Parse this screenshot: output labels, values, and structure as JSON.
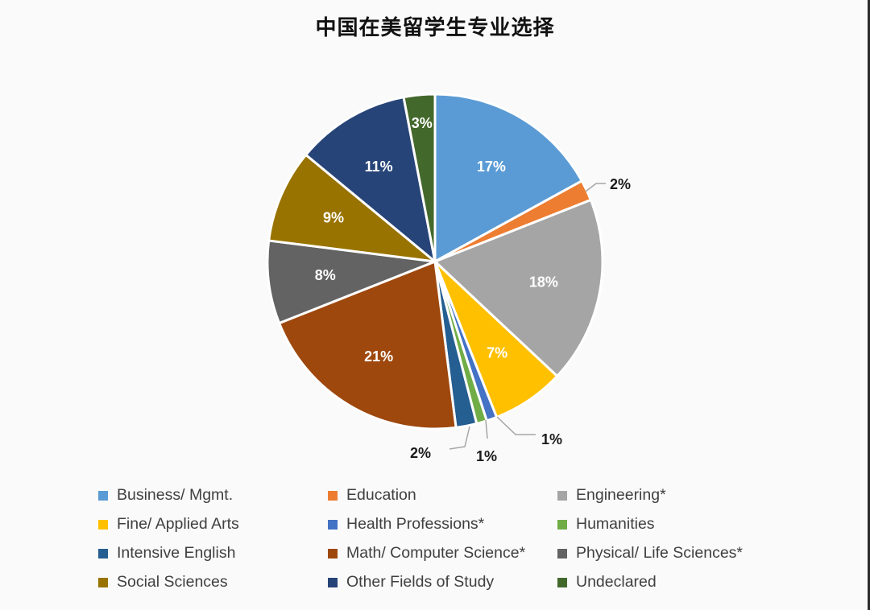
{
  "title": "中国在美留学生专业选择",
  "chart_data": {
    "type": "pie",
    "title": "中国在美留学生专业选择",
    "start_angle_deg": 0,
    "direction": "clockwise",
    "legend_position": "bottom",
    "categories": [
      "Business/ Mgmt.",
      "Education",
      "Engineering*",
      "Fine/ Applied Arts",
      "Health Professions*",
      "Humanities",
      "Intensive English",
      "Math/ Computer Science*",
      "Physical/ Life Sciences*",
      "Social Sciences",
      "Other Fields of Study",
      "Undeclared"
    ],
    "values": [
      17,
      2,
      18,
      7,
      1,
      1,
      2,
      21,
      8,
      9,
      11,
      3
    ],
    "labels": [
      "17%",
      "2%",
      "18%",
      "7%",
      "1%",
      "1%",
      "2%",
      "21%",
      "8%",
      "9%",
      "11%",
      "3%"
    ],
    "colors": [
      "#5b9bd5",
      "#ed7d31",
      "#a5a5a5",
      "#ffc000",
      "#4472c4",
      "#70ad47",
      "#255e91",
      "#9e480e",
      "#636363",
      "#997300",
      "#264478",
      "#43682b"
    ]
  },
  "legend": [
    {
      "label": "Business/ Mgmt.",
      "color": "#5b9bd5"
    },
    {
      "label": "Education",
      "color": "#ed7d31"
    },
    {
      "label": "Engineering*",
      "color": "#a5a5a5"
    },
    {
      "label": "Fine/ Applied Arts",
      "color": "#ffc000"
    },
    {
      "label": "Health Professions*",
      "color": "#4472c4"
    },
    {
      "label": "Humanities",
      "color": "#70ad47"
    },
    {
      "label": "Intensive English",
      "color": "#255e91"
    },
    {
      "label": "Math/ Computer Science*",
      "color": "#9e480e"
    },
    {
      "label": "Physical/ Life Sciences*",
      "color": "#636363"
    },
    {
      "label": "Social Sciences",
      "color": "#997300"
    },
    {
      "label": "Other Fields of Study",
      "color": "#264478"
    },
    {
      "label": "Undeclared",
      "color": "#43682b"
    }
  ]
}
